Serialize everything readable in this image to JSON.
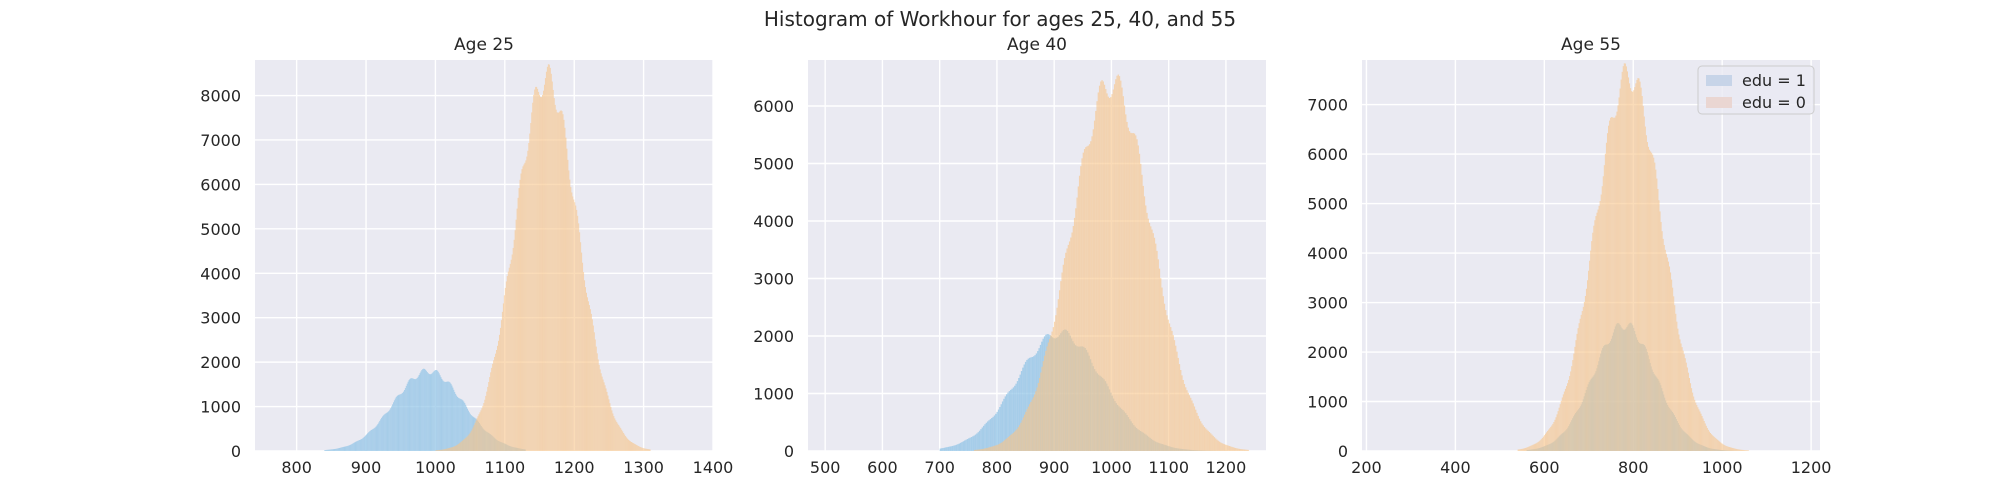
{
  "figure": {
    "title": "Histogram of Workhour for ages 25, 40, and 55"
  },
  "colors": {
    "background": "#eaeaf2",
    "grid": "#ffffff",
    "edu1": "#8fc3e6",
    "edu0": "#f7c48a",
    "text": "#262626"
  },
  "legend": {
    "placement": "top-right",
    "labels": [
      "edu = 1",
      "edu = 0"
    ]
  },
  "chart_data": [
    {
      "type": "histogram",
      "title": "Age 25",
      "xlim": [
        740,
        1400
      ],
      "ylim": [
        0,
        8800
      ],
      "xticks": [
        800,
        900,
        1000,
        1100,
        1200,
        1300,
        1400
      ],
      "yticks": [
        0,
        1000,
        2000,
        3000,
        4000,
        5000,
        6000,
        7000,
        8000
      ],
      "grid": true,
      "series": [
        {
          "name": "edu = 1",
          "shape": "gaussian",
          "mean": 990,
          "sd": 50,
          "peak": 1800,
          "range": [
            840,
            1130
          ]
        },
        {
          "name": "edu = 0",
          "shape": "gaussian",
          "mean": 1160,
          "sd": 45,
          "peak": 8400,
          "range": [
            1000,
            1310
          ]
        }
      ]
    },
    {
      "type": "histogram",
      "title": "Age 40",
      "xlim": [
        470,
        1270
      ],
      "ylim": [
        0,
        6800
      ],
      "xticks": [
        500,
        600,
        700,
        800,
        900,
        1000,
        1100,
        1200
      ],
      "yticks": [
        0,
        1000,
        2000,
        3000,
        4000,
        5000,
        6000
      ],
      "grid": true,
      "series": [
        {
          "name": "edu = 1",
          "shape": "gaussian",
          "mean": 910,
          "sd": 75,
          "peak": 2050,
          "range": [
            700,
            1220
          ]
        },
        {
          "name": "edu = 0",
          "shape": "gaussian",
          "mean": 1000,
          "sd": 70,
          "peak": 6400,
          "range": [
            760,
            1240
          ]
        }
      ]
    },
    {
      "type": "histogram",
      "title": "Age 55",
      "xlim": [
        190,
        1220
      ],
      "ylim": [
        0,
        7900
      ],
      "xticks": [
        200,
        400,
        600,
        800,
        1000,
        1200
      ],
      "yticks": [
        0,
        1000,
        2000,
        3000,
        4000,
        5000,
        6000,
        7000
      ],
      "grid": true,
      "legend": true,
      "series": [
        {
          "name": "edu = 1",
          "shape": "gaussian",
          "mean": 780,
          "sd": 70,
          "peak": 2550,
          "range": [
            560,
            1040
          ]
        },
        {
          "name": "edu = 0",
          "shape": "gaussian",
          "mean": 790,
          "sd": 75,
          "peak": 7600,
          "range": [
            540,
            1060
          ]
        }
      ]
    }
  ]
}
